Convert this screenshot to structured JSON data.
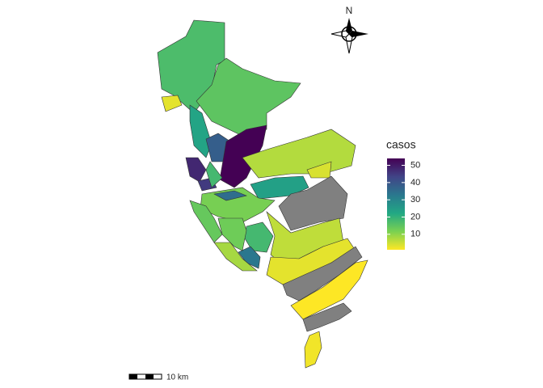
{
  "map": {
    "north_label": "N",
    "scale_label": "10 km",
    "legend": {
      "title": "casos",
      "limits": [
        1,
        54
      ],
      "ticks": [
        10,
        20,
        30,
        40,
        50
      ],
      "palette": [
        "#fde725",
        "#7ad151",
        "#22a884",
        "#2a788e",
        "#414487",
        "#440154"
      ],
      "na_color": "#808080"
    },
    "values": [
      17,
      15,
      3,
      23,
      38,
      54,
      7,
      4,
      24,
      null,
      48,
      45,
      18,
      12,
      35,
      14,
      18,
      33,
      8,
      6,
      3,
      null,
      1,
      null,
      2,
      13
    ]
  }
}
